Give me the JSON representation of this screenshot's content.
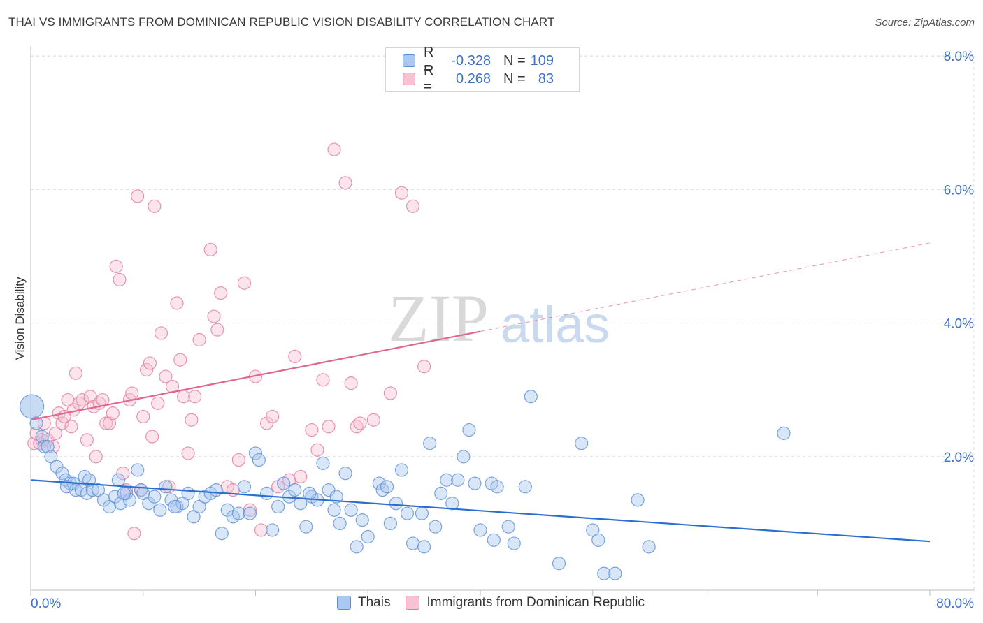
{
  "title": "THAI VS IMMIGRANTS FROM DOMINICAN REPUBLIC VISION DISABILITY CORRELATION CHART",
  "source": "Source: ZipAtlas.com",
  "watermark": {
    "zip": "ZIP",
    "atlas": "atlas"
  },
  "legend": {
    "r_label": "R =",
    "n_label": "N =",
    "rows": [
      {
        "series": "Thais",
        "r": "-0.328",
        "n": "109"
      },
      {
        "series": "Immigrants from Dominican Republic",
        "r": "0.268",
        "n": "83"
      }
    ]
  },
  "colors": {
    "thai_fill": "#aac8f0",
    "thai_stroke": "#5b8fd4",
    "thai_line": "#2a6fd0",
    "dom_fill": "#f7c3d2",
    "dom_stroke": "#e27a9c",
    "dom_line": "#e06690",
    "axis_text": "#3b6fc4",
    "grid": "#dcdcdc"
  },
  "chart_data": {
    "type": "scatter",
    "title": "THAI VS IMMIGRANTS FROM DOMINICAN REPUBLIC VISION DISABILITY CORRELATION CHART",
    "xlabel": "",
    "ylabel": "Vision Disability",
    "xlim": [
      0,
      80
    ],
    "ylim": [
      0,
      8.2
    ],
    "x_tick_labels": [
      "0.0%",
      "80.0%"
    ],
    "y_ticks": [
      2,
      4,
      6,
      8
    ],
    "y_tick_labels": [
      "2.0%",
      "4.0%",
      "6.0%",
      "8.0%"
    ],
    "grid": true,
    "series": [
      {
        "name": "Thais",
        "r": -0.328,
        "n": 109,
        "trend": {
          "x": [
            0,
            80
          ],
          "y": [
            1.65,
            0.73
          ],
          "dashed_from": null
        },
        "points": [
          [
            0.1,
            2.75
          ],
          [
            0.5,
            2.5
          ],
          [
            1,
            2.3
          ],
          [
            1.2,
            2.15
          ],
          [
            1.5,
            2.15
          ],
          [
            1.8,
            2.0
          ],
          [
            2.3,
            1.85
          ],
          [
            2.8,
            1.75
          ],
          [
            3.1,
            1.65
          ],
          [
            3.5,
            1.6
          ],
          [
            3.8,
            1.6
          ],
          [
            4,
            1.5
          ],
          [
            4.5,
            1.5
          ],
          [
            4.8,
            1.7
          ],
          [
            5,
            1.45
          ],
          [
            5.5,
            1.5
          ],
          [
            6,
            1.5
          ],
          [
            6.5,
            1.35
          ],
          [
            7,
            1.25
          ],
          [
            7.5,
            1.4
          ],
          [
            7.8,
            1.65
          ],
          [
            8,
            1.3
          ],
          [
            8.5,
            1.45
          ],
          [
            8.8,
            1.35
          ],
          [
            9.5,
            1.8
          ],
          [
            9.8,
            1.5
          ],
          [
            10,
            1.45
          ],
          [
            10.5,
            1.3
          ],
          [
            11,
            1.4
          ],
          [
            11.5,
            1.2
          ],
          [
            12,
            1.55
          ],
          [
            12.5,
            1.35
          ],
          [
            13,
            1.25
          ],
          [
            13.5,
            1.3
          ],
          [
            14,
            1.45
          ],
          [
            14.5,
            1.1
          ],
          [
            15,
            1.25
          ],
          [
            15.5,
            1.4
          ],
          [
            16,
            1.45
          ],
          [
            16.5,
            1.5
          ],
          [
            17,
            0.85
          ],
          [
            17.5,
            1.2
          ],
          [
            18,
            1.1
          ],
          [
            18.5,
            1.15
          ],
          [
            19,
            1.55
          ],
          [
            19.5,
            1.15
          ],
          [
            20,
            2.05
          ],
          [
            20.3,
            1.95
          ],
          [
            21,
            1.45
          ],
          [
            21.5,
            0.9
          ],
          [
            22,
            1.25
          ],
          [
            22.5,
            1.6
          ],
          [
            23,
            1.4
          ],
          [
            23.5,
            1.5
          ],
          [
            24,
            1.3
          ],
          [
            24.5,
            0.95
          ],
          [
            25,
            1.4
          ],
          [
            25.5,
            1.35
          ],
          [
            26,
            1.9
          ],
          [
            26.5,
            1.5
          ],
          [
            27,
            1.2
          ],
          [
            27.5,
            1.0
          ],
          [
            28,
            1.75
          ],
          [
            28.5,
            1.2
          ],
          [
            29,
            0.65
          ],
          [
            29.5,
            1.05
          ],
          [
            30,
            0.8
          ],
          [
            31,
            1.6
          ],
          [
            31.3,
            1.5
          ],
          [
            31.7,
            1.55
          ],
          [
            32,
            1.0
          ],
          [
            32.5,
            1.3
          ],
          [
            33,
            1.8
          ],
          [
            33.5,
            1.15
          ],
          [
            34,
            0.7
          ],
          [
            34.8,
            1.15
          ],
          [
            35,
            0.65
          ],
          [
            35.5,
            2.2
          ],
          [
            36,
            0.95
          ],
          [
            36.5,
            1.45
          ],
          [
            37,
            1.65
          ],
          [
            37.5,
            1.3
          ],
          [
            38,
            1.65
          ],
          [
            38.5,
            2.0
          ],
          [
            39,
            2.4
          ],
          [
            39.5,
            1.6
          ],
          [
            40,
            0.9
          ],
          [
            41,
            1.6
          ],
          [
            41.2,
            0.75
          ],
          [
            41.5,
            1.55
          ],
          [
            42.5,
            0.95
          ],
          [
            43,
            0.7
          ],
          [
            44,
            1.55
          ],
          [
            44.5,
            2.9
          ],
          [
            47,
            0.4
          ],
          [
            49,
            2.2
          ],
          [
            50,
            0.9
          ],
          [
            50.5,
            0.75
          ],
          [
            51,
            0.25
          ],
          [
            52,
            0.25
          ],
          [
            54,
            1.35
          ],
          [
            55,
            0.65
          ],
          [
            67,
            2.35
          ],
          [
            8.3,
            1.45
          ],
          [
            5.2,
            1.65
          ],
          [
            12.8,
            1.25
          ],
          [
            24.8,
            1.45
          ],
          [
            27.2,
            1.4
          ],
          [
            3.2,
            1.55
          ]
        ]
      },
      {
        "name": "Immigrants from Dominican Republic",
        "r": 0.268,
        "n": 83,
        "trend": {
          "x": [
            0,
            80
          ],
          "y": [
            2.55,
            5.2
          ],
          "dashed_from": 40
        },
        "points": [
          [
            0.3,
            2.2
          ],
          [
            0.5,
            2.35
          ],
          [
            0.8,
            2.2
          ],
          [
            1,
            2.25
          ],
          [
            1.2,
            2.5
          ],
          [
            1.5,
            2.25
          ],
          [
            2,
            2.15
          ],
          [
            2.2,
            2.35
          ],
          [
            2.5,
            2.65
          ],
          [
            2.8,
            2.5
          ],
          [
            3,
            2.6
          ],
          [
            3.3,
            2.85
          ],
          [
            3.6,
            2.45
          ],
          [
            3.8,
            2.7
          ],
          [
            4,
            3.25
          ],
          [
            4.3,
            2.8
          ],
          [
            4.6,
            2.85
          ],
          [
            5,
            2.25
          ],
          [
            5.3,
            2.9
          ],
          [
            5.6,
            2.75
          ],
          [
            5.8,
            2.0
          ],
          [
            6.1,
            2.8
          ],
          [
            6.4,
            2.85
          ],
          [
            6.7,
            2.5
          ],
          [
            7,
            2.5
          ],
          [
            7.3,
            2.65
          ],
          [
            7.6,
            4.85
          ],
          [
            7.9,
            4.65
          ],
          [
            8.2,
            1.75
          ],
          [
            8.5,
            1.5
          ],
          [
            8.8,
            2.85
          ],
          [
            9,
            2.95
          ],
          [
            9.2,
            0.85
          ],
          [
            9.5,
            5.9
          ],
          [
            9.8,
            1.5
          ],
          [
            10,
            2.6
          ],
          [
            10.3,
            3.3
          ],
          [
            10.6,
            3.4
          ],
          [
            10.8,
            2.3
          ],
          [
            11,
            5.75
          ],
          [
            11.3,
            2.8
          ],
          [
            11.6,
            3.85
          ],
          [
            12,
            3.2
          ],
          [
            12.3,
            1.55
          ],
          [
            12.6,
            3.05
          ],
          [
            13,
            4.3
          ],
          [
            13.3,
            3.45
          ],
          [
            13.6,
            2.9
          ],
          [
            14,
            2.05
          ],
          [
            14.3,
            2.55
          ],
          [
            14.6,
            2.9
          ],
          [
            15,
            3.75
          ],
          [
            16,
            5.1
          ],
          [
            16.3,
            4.1
          ],
          [
            16.6,
            3.9
          ],
          [
            16.9,
            4.45
          ],
          [
            17.5,
            1.55
          ],
          [
            18,
            1.5
          ],
          [
            18.5,
            1.95
          ],
          [
            19,
            4.6
          ],
          [
            19.5,
            1.2
          ],
          [
            20,
            3.2
          ],
          [
            20.5,
            0.9
          ],
          [
            21,
            2.5
          ],
          [
            21.5,
            2.6
          ],
          [
            22,
            1.55
          ],
          [
            23,
            1.65
          ],
          [
            23.5,
            3.5
          ],
          [
            24,
            1.7
          ],
          [
            25,
            2.4
          ],
          [
            25.5,
            2.1
          ],
          [
            26,
            3.15
          ],
          [
            26.5,
            2.45
          ],
          [
            27,
            6.6
          ],
          [
            28,
            6.1
          ],
          [
            28.5,
            3.1
          ],
          [
            29,
            2.45
          ],
          [
            29.3,
            2.5
          ],
          [
            30.5,
            2.55
          ],
          [
            32,
            2.95
          ],
          [
            33,
            5.95
          ],
          [
            34,
            5.75
          ],
          [
            35,
            3.35
          ]
        ]
      }
    ]
  }
}
